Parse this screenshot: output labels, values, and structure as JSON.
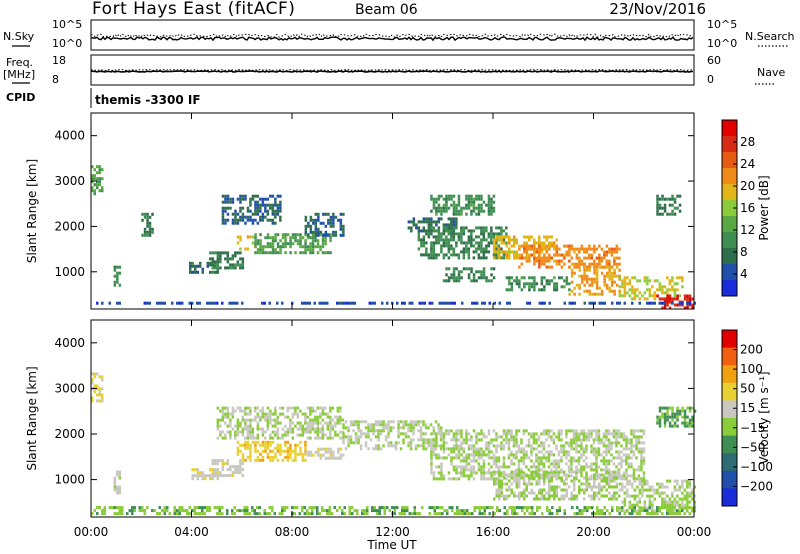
{
  "header": {
    "station": "Fort Hays East (fitACF)",
    "beam": "Beam 06",
    "date": "23/Nov/2016"
  },
  "top_panels": {
    "nsky_label": "N.Sky",
    "nsearch_label": "N.Search",
    "noise_ticks": [
      "10^5",
      "10^0"
    ],
    "freq_label": "Freq.",
    "freq_unit": "[MHz]",
    "freq_ticks": [
      "18",
      "8"
    ],
    "nave_label": "Nave",
    "nave_ticks": [
      "60",
      "0"
    ],
    "cpid_label": "CPID",
    "cpid_value": "themis -3300 IF"
  },
  "colors": {
    "power_scale": [
      "#1a2bd8",
      "#1f4fa8",
      "#2f6e4a",
      "#3f8e52",
      "#5aa845",
      "#8ccc3a",
      "#e3b417",
      "#f08a18",
      "#e65a14",
      "#d62a14",
      "#e00000"
    ],
    "velocity_scale": [
      "#1a2bd8",
      "#1f4fa8",
      "#2e6b73",
      "#3f8f55",
      "#8acc3a",
      "#c8c8c0",
      "#e8d030",
      "#f0a010",
      "#f06010",
      "#e00000"
    ]
  },
  "chart_data": [
    {
      "type": "heatmap",
      "name": "power",
      "ylabel": "Slant Range [km]",
      "ylim": [
        180,
        4500
      ],
      "yticks": [
        "4000",
        "3000",
        "2000",
        "1000"
      ],
      "xlim_hours": [
        0,
        24
      ],
      "colorbar_label": "Power [dB]",
      "colorbar_ticks": [
        "28",
        "24",
        "20",
        "16",
        "12",
        "8",
        "4"
      ],
      "colorbar_range": [
        0,
        32
      ],
      "bands": [
        {
          "t": [
            0.0,
            0.45
          ],
          "r": [
            2700,
            3350
          ],
          "v": 12
        },
        {
          "t": [
            0.9,
            1.1
          ],
          "r": [
            700,
            1200
          ],
          "v": 10
        },
        {
          "t": [
            2.0,
            2.4
          ],
          "r": [
            1800,
            2300
          ],
          "v": 8
        },
        {
          "t": [
            3.9,
            5.0
          ],
          "r": [
            1000,
            1220
          ],
          "v": 7
        },
        {
          "t": [
            4.7,
            6.0
          ],
          "r": [
            1100,
            1450
          ],
          "v": 8
        },
        {
          "t": [
            5.2,
            7.5
          ],
          "r": [
            2100,
            2700
          ],
          "v": 6
        },
        {
          "t": [
            5.8,
            6.5
          ],
          "r": [
            1500,
            1800
          ],
          "v": 19
        },
        {
          "t": [
            6.5,
            9.5
          ],
          "r": [
            1450,
            1850
          ],
          "v": 12
        },
        {
          "t": [
            8.5,
            10.0
          ],
          "r": [
            1800,
            2300
          ],
          "v": 6
        },
        {
          "t": [
            12.5,
            14.5
          ],
          "r": [
            1900,
            2200
          ],
          "v": 7
        },
        {
          "t": [
            13.5,
            16.0
          ],
          "r": [
            2300,
            2700
          ],
          "v": 10
        },
        {
          "t": [
            13.0,
            16.5
          ],
          "r": [
            1300,
            2000
          ],
          "v": 9
        },
        {
          "t": [
            14.0,
            16.0
          ],
          "r": [
            800,
            1100
          ],
          "v": 9
        },
        {
          "t": [
            16.0,
            18.5
          ],
          "r": [
            1300,
            1800
          ],
          "v": 19
        },
        {
          "t": [
            17.0,
            21.0
          ],
          "r": [
            1100,
            1600
          ],
          "v": 22
        },
        {
          "t": [
            16.5,
            19.0
          ],
          "r": [
            600,
            900
          ],
          "v": 10
        },
        {
          "t": [
            19.0,
            21.0
          ],
          "r": [
            500,
            1200
          ],
          "v": 21
        },
        {
          "t": [
            21.0,
            23.5
          ],
          "r": [
            400,
            900
          ],
          "v": 18
        },
        {
          "t": [
            22.5,
            24.0
          ],
          "r": [
            200,
            500
          ],
          "v": 29
        },
        {
          "t": [
            22.5,
            23.4
          ],
          "r": [
            2300,
            2700
          ],
          "v": 8
        },
        {
          "t": [
            0.2,
            24.0
          ],
          "r": [
            280,
            340
          ],
          "v": 4
        }
      ]
    },
    {
      "type": "heatmap",
      "name": "velocity",
      "ylabel": "Slant Range [km]",
      "ylim": [
        180,
        4500
      ],
      "yticks": [
        "4000",
        "3000",
        "2000",
        "1000"
      ],
      "xlim_hours": [
        0,
        24
      ],
      "xticks": [
        "00:00",
        "04:00",
        "08:00",
        "12:00",
        "16:00",
        "20:00",
        "00:00"
      ],
      "xlabel": "Time UT",
      "colorbar_label": "Velocity [m s⁻¹]",
      "colorbar_ticks": [
        "200",
        "100",
        "50",
        "15",
        "−15",
        "−50",
        "−100",
        "−200"
      ],
      "colorbar_range": [
        -250,
        250
      ],
      "bands": [
        {
          "t": [
            0.0,
            0.45
          ],
          "r": [
            2700,
            3350
          ],
          "v": 60
        },
        {
          "t": [
            0.9,
            1.1
          ],
          "r": [
            700,
            1200
          ],
          "v": 20
        },
        {
          "t": [
            4.0,
            5.0
          ],
          "r": [
            1000,
            1250
          ],
          "v": 40
        },
        {
          "t": [
            4.8,
            6.0
          ],
          "r": [
            1100,
            1450
          ],
          "v": 30
        },
        {
          "t": [
            5.0,
            10.0
          ],
          "r": [
            1900,
            2600
          ],
          "v": 0
        },
        {
          "t": [
            5.8,
            8.5
          ],
          "r": [
            1400,
            1850
          ],
          "v": 80
        },
        {
          "t": [
            8.5,
            10.0
          ],
          "r": [
            1450,
            1700
          ],
          "v": 35
        },
        {
          "t": [
            10.0,
            14.0
          ],
          "r": [
            1700,
            2300
          ],
          "v": 0
        },
        {
          "t": [
            13.5,
            22.0
          ],
          "r": [
            1000,
            2100
          ],
          "v": 0
        },
        {
          "t": [
            16.0,
            21.0
          ],
          "r": [
            600,
            1200
          ],
          "v": 0
        },
        {
          "t": [
            21.0,
            24.0
          ],
          "r": [
            300,
            1000
          ],
          "v": 0
        },
        {
          "t": [
            22.5,
            24.0
          ],
          "r": [
            2200,
            2600
          ],
          "v": -60
        },
        {
          "t": [
            0.0,
            24.0
          ],
          "r": [
            250,
            420
          ],
          "v": -40
        }
      ]
    }
  ]
}
